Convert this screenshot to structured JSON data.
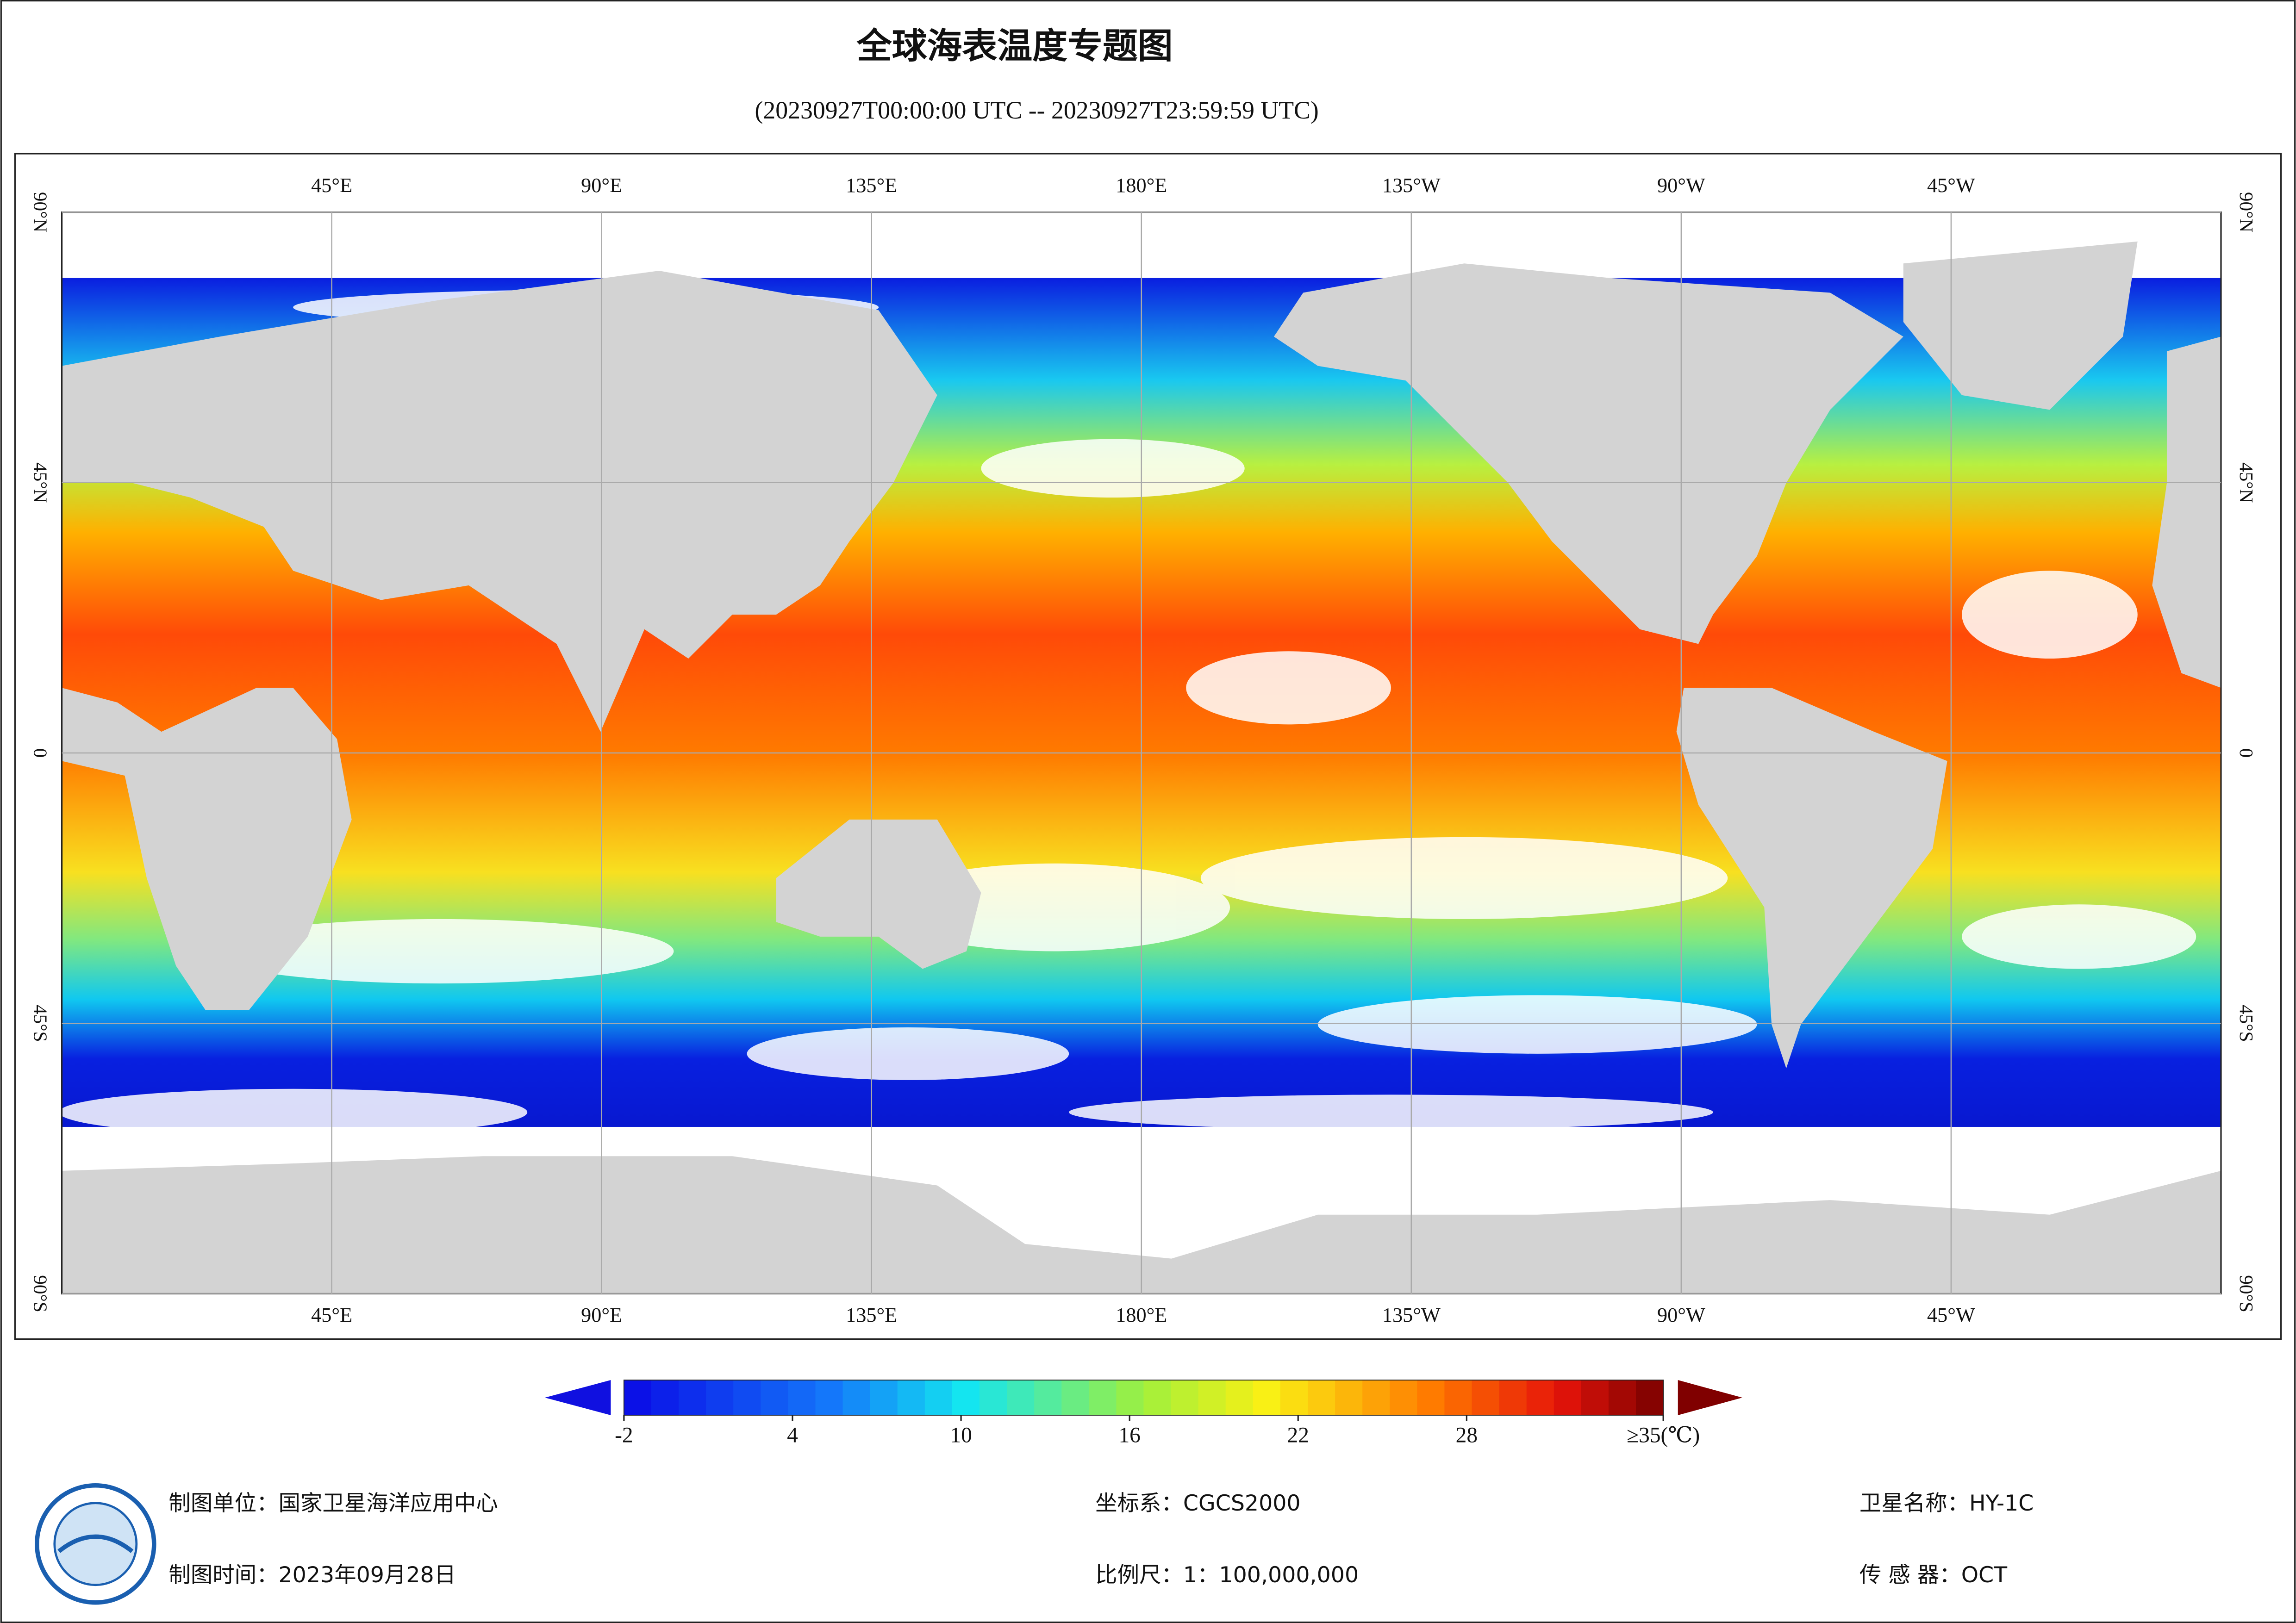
{
  "header": {
    "title": "全球海表温度专题图",
    "subtitle": "(20230927T00:00:00 UTC -- 20230927T23:59:59 UTC)"
  },
  "map": {
    "lonlim": [
      0,
      360
    ],
    "latlim": [
      -90,
      90
    ],
    "lon_ticks": [
      {
        "value": 45,
        "label": "45°E"
      },
      {
        "value": 90,
        "label": "90°E"
      },
      {
        "value": 135,
        "label": "135°E"
      },
      {
        "value": 180,
        "label": "180°E"
      },
      {
        "value": 225,
        "label": "135°W"
      },
      {
        "value": 270,
        "label": "90°W"
      },
      {
        "value": 315,
        "label": "45°W"
      }
    ],
    "lat_ticks": [
      {
        "value": 90,
        "label": "90°N"
      },
      {
        "value": 45,
        "label": "45°N"
      },
      0,
      {
        "value": -45,
        "label": "45°S"
      },
      {
        "value": -90,
        "label": "90°S"
      }
    ]
  },
  "colorbar": {
    "lim": [
      -2,
      35
    ],
    "ticks": [
      -2,
      4,
      10,
      16,
      22,
      28,
      {
        "value": 35,
        "label": "≥35(℃)"
      }
    ]
  },
  "footer": {
    "agency": "制图单位：国家卫星海洋应用中心",
    "date": "制图时间：2023年09月28日",
    "crs": "坐标系：CGCS2000",
    "scale": "比例尺：1：100,000,000",
    "satellite": "卫星名称：HY-1C",
    "sensor": "传 感 器：OCT"
  }
}
